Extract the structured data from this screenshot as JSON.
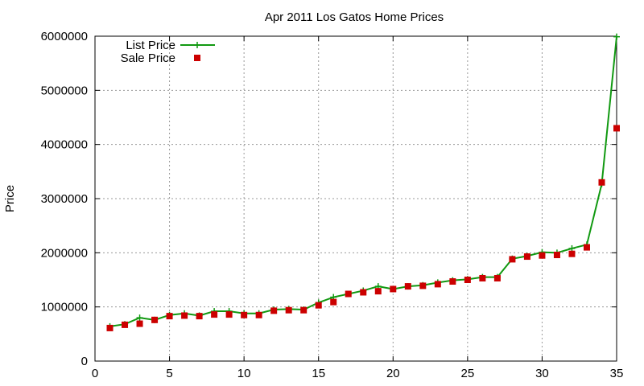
{
  "chart_data": {
    "type": "line",
    "title": "Apr 2011 Los Gatos Home Prices",
    "xlabel": "",
    "ylabel": "Price",
    "xlim": [
      0,
      35
    ],
    "ylim": [
      0,
      6000000
    ],
    "xticks": [
      0,
      5,
      10,
      15,
      20,
      25,
      30,
      35
    ],
    "yticks": [
      0,
      1000000,
      2000000,
      3000000,
      4000000,
      5000000,
      6000000
    ],
    "xtick_labels": [
      "0",
      "5",
      "10",
      "15",
      "20",
      "25",
      "30",
      "35"
    ],
    "ytick_labels": [
      "0",
      "1000000",
      "2000000",
      "3000000",
      "4000000",
      "5000000",
      "6000000"
    ],
    "grid": true,
    "legend_position": "top-left",
    "x": [
      1,
      2,
      3,
      4,
      5,
      6,
      7,
      8,
      9,
      10,
      11,
      12,
      13,
      14,
      15,
      16,
      17,
      18,
      19,
      20,
      21,
      22,
      23,
      24,
      25,
      26,
      27,
      28,
      29,
      30,
      31,
      32,
      33,
      34,
      35
    ],
    "series": [
      {
        "name": "List Price",
        "style": "line-plus",
        "color": "#119911",
        "values": [
          640000,
          680000,
          800000,
          760000,
          850000,
          880000,
          840000,
          920000,
          920000,
          880000,
          880000,
          950000,
          960000,
          950000,
          1080000,
          1180000,
          1240000,
          1300000,
          1380000,
          1330000,
          1380000,
          1400000,
          1450000,
          1490000,
          1510000,
          1550000,
          1550000,
          1890000,
          1940000,
          2010000,
          2000000,
          2080000,
          2150000,
          3270000,
          5990000
        ]
      },
      {
        "name": "Sale Price",
        "style": "square-markers",
        "color": "#cc0000",
        "values": [
          610000,
          670000,
          690000,
          760000,
          830000,
          840000,
          830000,
          860000,
          860000,
          850000,
          850000,
          930000,
          940000,
          940000,
          1030000,
          1090000,
          1240000,
          1270000,
          1290000,
          1330000,
          1380000,
          1390000,
          1420000,
          1470000,
          1500000,
          1530000,
          1530000,
          1880000,
          1930000,
          1950000,
          1960000,
          1980000,
          2100000,
          3300000,
          4300000
        ]
      }
    ]
  }
}
